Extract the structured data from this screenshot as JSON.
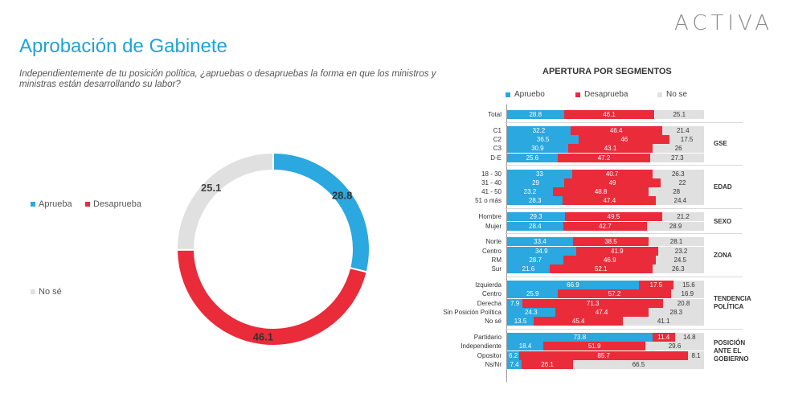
{
  "logo": "ACTIVA",
  "title": "Aprobación de Gabinete",
  "question": "Independientemente de tu posición política, ¿apruebas o desapruebas la forma en que los ministros y ministras están desarrollando su labor?",
  "legend": {
    "aprueba": "Aprueba",
    "desaprueba": "Desaprueba",
    "nose": "No sé"
  },
  "colors": {
    "aprueba": "#2aa8df",
    "desaprueba": "#ea2b3a",
    "nose": "#e0e0e0"
  },
  "segments": {
    "title": "APERTURA POR SEGMENTOS",
    "legend": {
      "aprueba": "Apruebo",
      "desaprueba": "Desaprueba",
      "nose": "No se"
    }
  },
  "chart_data": [
    {
      "type": "pie",
      "title": "Aprobación de Gabinete",
      "categories": [
        "Aprueba",
        "Desaprueba",
        "No sé"
      ],
      "values": [
        28.8,
        46.1,
        25.1
      ],
      "value_labels": [
        "28.8",
        "46.1",
        "25.1"
      ]
    },
    {
      "type": "bar",
      "title": "APERTURA POR SEGMENTOS",
      "orientation": "horizontal-stacked",
      "series_names": [
        "Apruebo",
        "Desaprueba",
        "No se"
      ],
      "rows": [
        {
          "label": "Total",
          "group": "",
          "values": [
            28.8,
            46.1,
            25.1
          ],
          "labels": [
            "28.8",
            "46.1",
            "25.1"
          ]
        },
        {
          "label": "C1",
          "group": "GSE",
          "values": [
            32.2,
            46.4,
            21.4
          ],
          "labels": [
            "32.2",
            "46.4",
            "21.4"
          ]
        },
        {
          "label": "C2",
          "group": "GSE",
          "values": [
            36.5,
            46,
            17.5
          ],
          "labels": [
            "36.5",
            "46",
            "17.5"
          ]
        },
        {
          "label": "C3",
          "group": "GSE",
          "values": [
            30.9,
            43.1,
            26
          ],
          "labels": [
            "30.9",
            "43.1",
            "26"
          ]
        },
        {
          "label": "D-E",
          "group": "GSE",
          "values": [
            25.6,
            47.2,
            27.3
          ],
          "labels": [
            "25.6",
            "47.2",
            "27.3"
          ]
        },
        {
          "label": "18 - 30",
          "group": "EDAD",
          "values": [
            33,
            40.7,
            26.3
          ],
          "labels": [
            "33",
            "40.7",
            "26.3"
          ]
        },
        {
          "label": "31 - 40",
          "group": "EDAD",
          "values": [
            29,
            49,
            22
          ],
          "labels": [
            "29",
            "49",
            "22"
          ]
        },
        {
          "label": "41 - 50",
          "group": "EDAD",
          "values": [
            23.2,
            48.8,
            28
          ],
          "labels": [
            "23.2",
            "48.8",
            "28"
          ]
        },
        {
          "label": "51 o más",
          "group": "EDAD",
          "values": [
            28.3,
            47.4,
            24.4
          ],
          "labels": [
            "28.3",
            "47.4",
            "24.4"
          ]
        },
        {
          "label": "Hombre",
          "group": "SEXO",
          "values": [
            29.3,
            49.5,
            21.2
          ],
          "labels": [
            "29.3",
            "49.5",
            "21.2"
          ]
        },
        {
          "label": "Mujer",
          "group": "SEXO",
          "values": [
            28.4,
            42.7,
            28.9
          ],
          "labels": [
            "28.4",
            "42.7",
            "28.9"
          ]
        },
        {
          "label": "Norte",
          "group": "ZONA",
          "values": [
            33.4,
            38.5,
            28.1
          ],
          "labels": [
            "33.4",
            "38.5",
            "28.1"
          ]
        },
        {
          "label": "Centro",
          "group": "ZONA",
          "values": [
            34.9,
            41.9,
            23.2
          ],
          "labels": [
            "34.9",
            "41.9",
            "23.2"
          ]
        },
        {
          "label": "RM",
          "group": "ZONA",
          "values": [
            28.7,
            46.9,
            24.5
          ],
          "labels": [
            "28.7",
            "46.9",
            "24.5"
          ]
        },
        {
          "label": "Sur",
          "group": "ZONA",
          "values": [
            21.6,
            52.1,
            26.3
          ],
          "labels": [
            "21.6",
            "52.1",
            "26.3"
          ]
        },
        {
          "label": "Izquierda",
          "group": "TENDENCIA POLÍTICA",
          "values": [
            66.9,
            17.5,
            15.6
          ],
          "labels": [
            "66.9",
            "17.5",
            "15.6"
          ]
        },
        {
          "label": "Centro",
          "group": "TENDENCIA POLÍTICA",
          "values": [
            25.9,
            57.2,
            16.9
          ],
          "labels": [
            "25.9",
            "57.2",
            "16.9"
          ]
        },
        {
          "label": "Derecha",
          "group": "TENDENCIA POLÍTICA",
          "values": [
            7.9,
            71.3,
            20.8
          ],
          "labels": [
            "7.9",
            "71.3",
            "20.8"
          ]
        },
        {
          "label": "Sin Posición Política",
          "group": "TENDENCIA POLÍTICA",
          "values": [
            24.3,
            47.4,
            28.3
          ],
          "labels": [
            "24.3",
            "47.4",
            "28.3"
          ]
        },
        {
          "label": "No sé",
          "group": "TENDENCIA POLÍTICA",
          "values": [
            13.5,
            45.4,
            41.1
          ],
          "labels": [
            "13.5",
            "45.4",
            "41.1"
          ]
        },
        {
          "label": "Partidario",
          "group": "POSICIÓN ANTE EL GOBIERNO",
          "values": [
            73.8,
            11.4,
            14.8
          ],
          "labels": [
            "73.8",
            "11.4",
            "14.8"
          ]
        },
        {
          "label": "Independiente",
          "group": "POSICIÓN ANTE EL GOBIERNO",
          "values": [
            18.4,
            51.9,
            29.6
          ],
          "labels": [
            "18.4",
            "51.9",
            "29.6"
          ]
        },
        {
          "label": "Opositor",
          "group": "POSICIÓN ANTE EL GOBIERNO",
          "values": [
            6.2,
            85.7,
            8.1
          ],
          "labels": [
            "6.2",
            "85.7",
            "8.1"
          ]
        },
        {
          "label": "Ns/Nr",
          "group": "POSICIÓN ANTE EL GOBIERNO",
          "values": [
            7.4,
            26.1,
            66.5
          ],
          "labels": [
            "7.4",
            "26.1",
            "66.5"
          ]
        }
      ],
      "groups": [
        {
          "name": "GSE",
          "lines": [
            "GSE"
          ]
        },
        {
          "name": "EDAD",
          "lines": [
            "EDAD"
          ]
        },
        {
          "name": "SEXO",
          "lines": [
            "SEXO"
          ]
        },
        {
          "name": "ZONA",
          "lines": [
            "ZONA"
          ]
        },
        {
          "name": "TENDENCIA POLÍTICA",
          "lines": [
            "TENDENCIA",
            "POLÍTICA"
          ]
        },
        {
          "name": "POSICIÓN ANTE EL GOBIERNO",
          "lines": [
            "POSICIÓN",
            "ANTE EL",
            "GOBIERNO"
          ]
        }
      ]
    }
  ]
}
